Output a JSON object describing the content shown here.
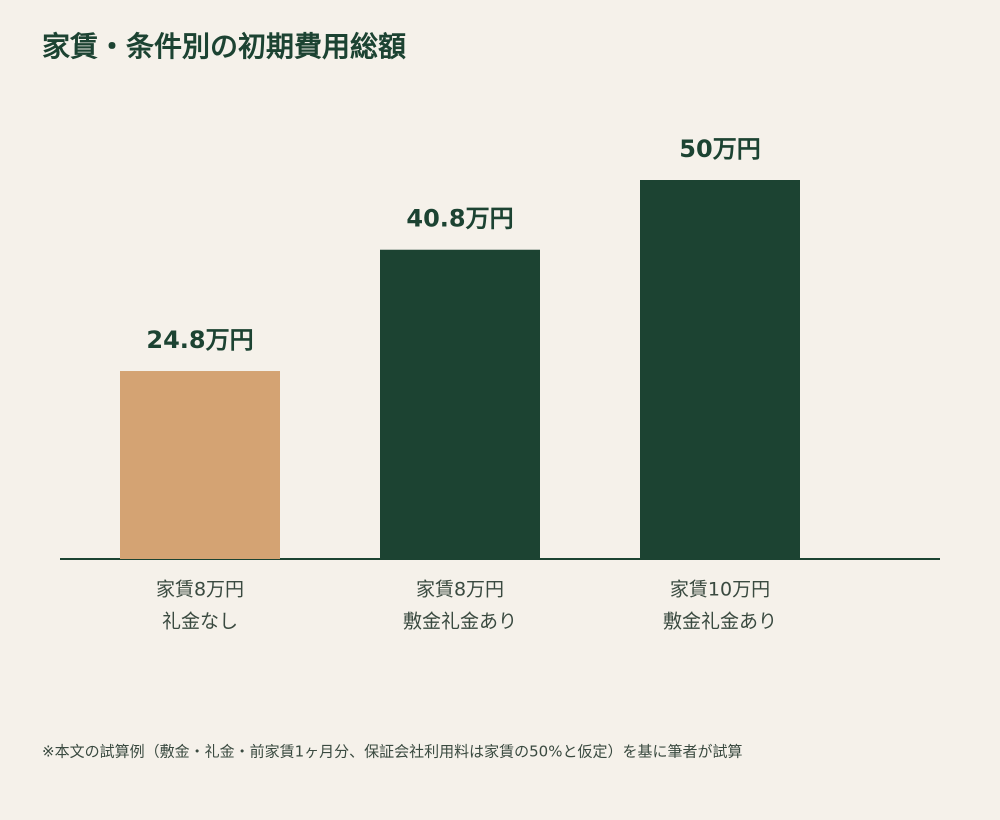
{
  "chart_data": {
    "type": "bar",
    "title": "家賃・条件別の初期費用総額",
    "categories": [
      [
        "家賃8万円",
        "礼金なし"
      ],
      [
        "家賃8万円",
        "敷金礼金あり"
      ],
      [
        "家賃10万円",
        "敷金礼金あり"
      ]
    ],
    "values": [
      24.8,
      40.8,
      50
    ],
    "value_labels": [
      "24.8万円",
      "40.8万円",
      "50万円"
    ],
    "colors": [
      "#d4a373",
      "#1c4332",
      "#1c4332"
    ],
    "note": "※本文の試算例（敷金・礼金・前家賃1ヶ月分、保証会社利用料は家賃の50%と仮定）を基に筆者が試算"
  }
}
